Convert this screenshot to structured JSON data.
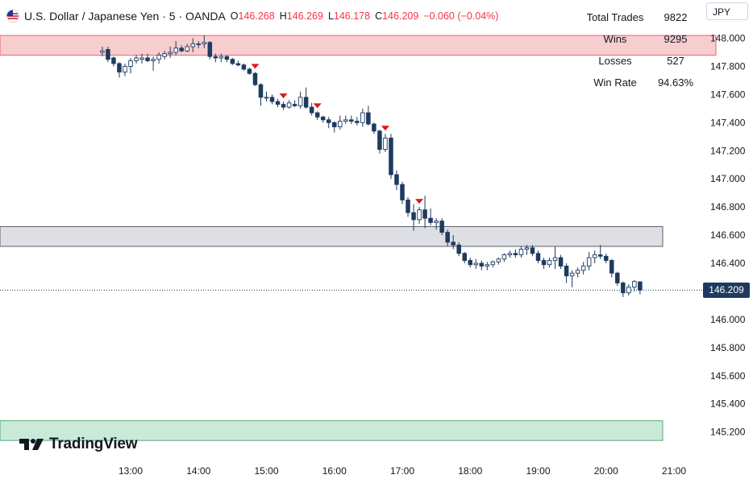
{
  "header": {
    "symbol_title": "U.S. Dollar / Japanese Yen · 5 · OANDA",
    "o_label": "O",
    "o_value": "146.268",
    "h_label": "H",
    "h_value": "146.269",
    "l_label": "L",
    "l_value": "146.178",
    "c_label": "C",
    "c_value": "146.209",
    "change": "−0.060 (−0.04%)"
  },
  "stats": {
    "total_trades_label": "Total Trades",
    "total_trades_value": "9822",
    "wins_label": "Wins",
    "wins_value": "9295",
    "losses_label": "Losses",
    "losses_value": "527",
    "win_rate_label": "Win Rate",
    "win_rate_value": "94.63%"
  },
  "currency_button": "JPY",
  "brand": "TradingView",
  "last_price_label": "146.209",
  "colors": {
    "up_candle": "#ffffff",
    "down_candle": "#1e3a5f",
    "wick": "#1e3a5f",
    "red_zone": "#f8cdd0",
    "gray_zone": "#dedfe4",
    "green_zone": "#cbe9d8",
    "signal_marker": "#e0141e"
  },
  "chart_data": {
    "type": "candlestick",
    "symbol": "USDJPY",
    "timeframe": "5",
    "y_axis": {
      "range": [
        145.1,
        148.1
      ],
      "ticks": [
        "148.000",
        "147.800",
        "147.600",
        "147.400",
        "147.200",
        "147.000",
        "146.800",
        "146.600",
        "146.400",
        "146.200",
        "146.000",
        "145.800",
        "145.600",
        "145.400",
        "145.200"
      ]
    },
    "x_axis": {
      "ticks": [
        "13:00",
        "14:00",
        "15:00",
        "16:00",
        "17:00",
        "18:00",
        "19:00",
        "20:00",
        "21:00"
      ]
    },
    "zones": [
      {
        "kind": "resistance",
        "top": 148.02,
        "bottom": 147.88
      },
      {
        "kind": "middle",
        "top": 146.66,
        "bottom": 146.52
      },
      {
        "kind": "support",
        "top": 145.28,
        "bottom": 145.14
      }
    ],
    "last_price": 146.209,
    "sell_signals": [
      "14:50",
      "15:15",
      "15:45",
      "16:45",
      "17:15"
    ],
    "candles": [
      {
        "t": "12:35",
        "o": 147.9,
        "h": 147.94,
        "l": 147.87,
        "c": 147.91
      },
      {
        "t": "12:40",
        "o": 147.92,
        "h": 147.94,
        "l": 147.83,
        "c": 147.85
      },
      {
        "t": "12:45",
        "o": 147.86,
        "h": 147.87,
        "l": 147.8,
        "c": 147.82
      },
      {
        "t": "12:50",
        "o": 147.82,
        "h": 147.83,
        "l": 147.72,
        "c": 147.76
      },
      {
        "t": "12:55",
        "o": 147.76,
        "h": 147.82,
        "l": 147.73,
        "c": 147.8
      },
      {
        "t": "13:00",
        "o": 147.8,
        "h": 147.86,
        "l": 147.75,
        "c": 147.84
      },
      {
        "t": "13:05",
        "o": 147.84,
        "h": 147.88,
        "l": 147.82,
        "c": 147.86
      },
      {
        "t": "13:10",
        "o": 147.85,
        "h": 147.89,
        "l": 147.82,
        "c": 147.86
      },
      {
        "t": "13:15",
        "o": 147.86,
        "h": 147.89,
        "l": 147.83,
        "c": 147.84
      },
      {
        "t": "13:20",
        "o": 147.84,
        "h": 147.87,
        "l": 147.77,
        "c": 147.85
      },
      {
        "t": "13:25",
        "o": 147.85,
        "h": 147.9,
        "l": 147.82,
        "c": 147.88
      },
      {
        "t": "13:30",
        "o": 147.87,
        "h": 147.91,
        "l": 147.85,
        "c": 147.89
      },
      {
        "t": "13:35",
        "o": 147.89,
        "h": 147.94,
        "l": 147.86,
        "c": 147.9
      },
      {
        "t": "13:40",
        "o": 147.9,
        "h": 147.98,
        "l": 147.88,
        "c": 147.93
      },
      {
        "t": "13:45",
        "o": 147.93,
        "h": 147.95,
        "l": 147.9,
        "c": 147.91
      },
      {
        "t": "13:50",
        "o": 147.91,
        "h": 147.96,
        "l": 147.9,
        "c": 147.94
      },
      {
        "t": "13:55",
        "o": 147.94,
        "h": 148.0,
        "l": 147.9,
        "c": 147.96
      },
      {
        "t": "14:00",
        "o": 147.96,
        "h": 147.98,
        "l": 147.93,
        "c": 147.96
      },
      {
        "t": "14:05",
        "o": 147.96,
        "h": 148.02,
        "l": 147.93,
        "c": 147.97
      },
      {
        "t": "14:10",
        "o": 147.97,
        "h": 147.98,
        "l": 147.85,
        "c": 147.87
      },
      {
        "t": "14:15",
        "o": 147.87,
        "h": 147.89,
        "l": 147.83,
        "c": 147.86
      },
      {
        "t": "14:20",
        "o": 147.86,
        "h": 147.89,
        "l": 147.83,
        "c": 147.87
      },
      {
        "t": "14:25",
        "o": 147.87,
        "h": 147.88,
        "l": 147.83,
        "c": 147.85
      },
      {
        "t": "14:30",
        "o": 147.85,
        "h": 147.86,
        "l": 147.81,
        "c": 147.82
      },
      {
        "t": "14:35",
        "o": 147.82,
        "h": 147.84,
        "l": 147.8,
        "c": 147.81
      },
      {
        "t": "14:40",
        "o": 147.81,
        "h": 147.82,
        "l": 147.77,
        "c": 147.78
      },
      {
        "t": "14:45",
        "o": 147.78,
        "h": 147.79,
        "l": 147.74,
        "c": 147.75
      },
      {
        "t": "14:50",
        "o": 147.75,
        "h": 147.76,
        "l": 147.66,
        "c": 147.67
      },
      {
        "t": "14:55",
        "o": 147.67,
        "h": 147.68,
        "l": 147.52,
        "c": 147.58
      },
      {
        "t": "15:00",
        "o": 147.58,
        "h": 147.62,
        "l": 147.55,
        "c": 147.58
      },
      {
        "t": "15:05",
        "o": 147.58,
        "h": 147.6,
        "l": 147.53,
        "c": 147.55
      },
      {
        "t": "15:10",
        "o": 147.55,
        "h": 147.57,
        "l": 147.51,
        "c": 147.53
      },
      {
        "t": "15:15",
        "o": 147.53,
        "h": 147.55,
        "l": 147.49,
        "c": 147.51
      },
      {
        "t": "15:20",
        "o": 147.51,
        "h": 147.56,
        "l": 147.5,
        "c": 147.54
      },
      {
        "t": "15:25",
        "o": 147.53,
        "h": 147.56,
        "l": 147.51,
        "c": 147.52
      },
      {
        "t": "15:30",
        "o": 147.52,
        "h": 147.62,
        "l": 147.5,
        "c": 147.58
      },
      {
        "t": "15:35",
        "o": 147.58,
        "h": 147.65,
        "l": 147.5,
        "c": 147.51
      },
      {
        "t": "15:40",
        "o": 147.51,
        "h": 147.54,
        "l": 147.45,
        "c": 147.47
      },
      {
        "t": "15:45",
        "o": 147.47,
        "h": 147.48,
        "l": 147.42,
        "c": 147.44
      },
      {
        "t": "15:50",
        "o": 147.44,
        "h": 147.45,
        "l": 147.4,
        "c": 147.42
      },
      {
        "t": "15:55",
        "o": 147.42,
        "h": 147.44,
        "l": 147.36,
        "c": 147.4
      },
      {
        "t": "16:00",
        "o": 147.4,
        "h": 147.41,
        "l": 147.33,
        "c": 147.37
      },
      {
        "t": "16:05",
        "o": 147.37,
        "h": 147.45,
        "l": 147.35,
        "c": 147.41
      },
      {
        "t": "16:10",
        "o": 147.41,
        "h": 147.45,
        "l": 147.39,
        "c": 147.42
      },
      {
        "t": "16:15",
        "o": 147.42,
        "h": 147.45,
        "l": 147.39,
        "c": 147.41
      },
      {
        "t": "16:20",
        "o": 147.41,
        "h": 147.44,
        "l": 147.38,
        "c": 147.4
      },
      {
        "t": "16:25",
        "o": 147.4,
        "h": 147.5,
        "l": 147.37,
        "c": 147.47
      },
      {
        "t": "16:30",
        "o": 147.47,
        "h": 147.52,
        "l": 147.38,
        "c": 147.39
      },
      {
        "t": "16:35",
        "o": 147.39,
        "h": 147.4,
        "l": 147.32,
        "c": 147.34
      },
      {
        "t": "16:40",
        "o": 147.34,
        "h": 147.35,
        "l": 147.18,
        "c": 147.21
      },
      {
        "t": "16:45",
        "o": 147.21,
        "h": 147.32,
        "l": 147.19,
        "c": 147.29
      },
      {
        "t": "16:50",
        "o": 147.29,
        "h": 147.32,
        "l": 147.0,
        "c": 147.03
      },
      {
        "t": "16:55",
        "o": 147.03,
        "h": 147.06,
        "l": 146.92,
        "c": 146.96
      },
      {
        "t": "17:00",
        "o": 146.96,
        "h": 146.98,
        "l": 146.82,
        "c": 146.85
      },
      {
        "t": "17:05",
        "o": 146.85,
        "h": 146.87,
        "l": 146.73,
        "c": 146.76
      },
      {
        "t": "17:10",
        "o": 146.76,
        "h": 146.82,
        "l": 146.63,
        "c": 146.71
      },
      {
        "t": "17:15",
        "o": 146.71,
        "h": 146.8,
        "l": 146.68,
        "c": 146.78
      },
      {
        "t": "17:20",
        "o": 146.78,
        "h": 146.88,
        "l": 146.65,
        "c": 146.72
      },
      {
        "t": "17:25",
        "o": 146.72,
        "h": 146.79,
        "l": 146.67,
        "c": 146.69
      },
      {
        "t": "17:30",
        "o": 146.69,
        "h": 146.72,
        "l": 146.64,
        "c": 146.7
      },
      {
        "t": "17:35",
        "o": 146.7,
        "h": 146.72,
        "l": 146.6,
        "c": 146.62
      },
      {
        "t": "17:40",
        "o": 146.62,
        "h": 146.64,
        "l": 146.52,
        "c": 146.55
      },
      {
        "t": "17:45",
        "o": 146.55,
        "h": 146.6,
        "l": 146.5,
        "c": 146.53
      },
      {
        "t": "17:50",
        "o": 146.53,
        "h": 146.55,
        "l": 146.45,
        "c": 146.47
      },
      {
        "t": "17:55",
        "o": 146.47,
        "h": 146.48,
        "l": 146.4,
        "c": 146.42
      },
      {
        "t": "18:00",
        "o": 146.42,
        "h": 146.44,
        "l": 146.37,
        "c": 146.39
      },
      {
        "t": "18:05",
        "o": 146.39,
        "h": 146.43,
        "l": 146.36,
        "c": 146.4
      },
      {
        "t": "18:10",
        "o": 146.4,
        "h": 146.42,
        "l": 146.35,
        "c": 146.38
      },
      {
        "t": "18:15",
        "o": 146.38,
        "h": 146.41,
        "l": 146.35,
        "c": 146.39
      },
      {
        "t": "18:20",
        "o": 146.39,
        "h": 146.42,
        "l": 146.37,
        "c": 146.41
      },
      {
        "t": "18:25",
        "o": 146.41,
        "h": 146.44,
        "l": 146.39,
        "c": 146.43
      },
      {
        "t": "18:30",
        "o": 146.43,
        "h": 146.47,
        "l": 146.41,
        "c": 146.46
      },
      {
        "t": "18:35",
        "o": 146.46,
        "h": 146.49,
        "l": 146.44,
        "c": 146.47
      },
      {
        "t": "18:40",
        "o": 146.47,
        "h": 146.5,
        "l": 146.44,
        "c": 146.46
      },
      {
        "t": "18:45",
        "o": 146.46,
        "h": 146.52,
        "l": 146.44,
        "c": 146.5
      },
      {
        "t": "18:50",
        "o": 146.5,
        "h": 146.53,
        "l": 146.46,
        "c": 146.51
      },
      {
        "t": "18:55",
        "o": 146.51,
        "h": 146.53,
        "l": 146.45,
        "c": 146.47
      },
      {
        "t": "19:00",
        "o": 146.47,
        "h": 146.49,
        "l": 146.4,
        "c": 146.42
      },
      {
        "t": "19:05",
        "o": 146.42,
        "h": 146.44,
        "l": 146.36,
        "c": 146.39
      },
      {
        "t": "19:10",
        "o": 146.39,
        "h": 146.44,
        "l": 146.37,
        "c": 146.42
      },
      {
        "t": "19:15",
        "o": 146.42,
        "h": 146.52,
        "l": 146.36,
        "c": 146.44
      },
      {
        "t": "19:20",
        "o": 146.44,
        "h": 146.46,
        "l": 146.36,
        "c": 146.38
      },
      {
        "t": "19:25",
        "o": 146.38,
        "h": 146.4,
        "l": 146.26,
        "c": 146.31
      },
      {
        "t": "19:30",
        "o": 146.31,
        "h": 146.35,
        "l": 146.23,
        "c": 146.33
      },
      {
        "t": "19:35",
        "o": 146.33,
        "h": 146.37,
        "l": 146.3,
        "c": 146.35
      },
      {
        "t": "19:40",
        "o": 146.35,
        "h": 146.41,
        "l": 146.32,
        "c": 146.38
      },
      {
        "t": "19:45",
        "o": 146.38,
        "h": 146.48,
        "l": 146.35,
        "c": 146.44
      },
      {
        "t": "19:50",
        "o": 146.44,
        "h": 146.49,
        "l": 146.4,
        "c": 146.46
      },
      {
        "t": "19:55",
        "o": 146.46,
        "h": 146.53,
        "l": 146.43,
        "c": 146.45
      },
      {
        "t": "20:00",
        "o": 146.45,
        "h": 146.47,
        "l": 146.4,
        "c": 146.42
      },
      {
        "t": "20:05",
        "o": 146.42,
        "h": 146.43,
        "l": 146.3,
        "c": 146.33
      },
      {
        "t": "20:10",
        "o": 146.33,
        "h": 146.34,
        "l": 146.24,
        "c": 146.26
      },
      {
        "t": "20:15",
        "o": 146.26,
        "h": 146.27,
        "l": 146.16,
        "c": 146.19
      },
      {
        "t": "20:20",
        "o": 146.19,
        "h": 146.25,
        "l": 146.17,
        "c": 146.23
      },
      {
        "t": "20:25",
        "o": 146.23,
        "h": 146.28,
        "l": 146.2,
        "c": 146.27
      },
      {
        "t": "20:30",
        "o": 146.268,
        "h": 146.269,
        "l": 146.178,
        "c": 146.209
      }
    ]
  }
}
